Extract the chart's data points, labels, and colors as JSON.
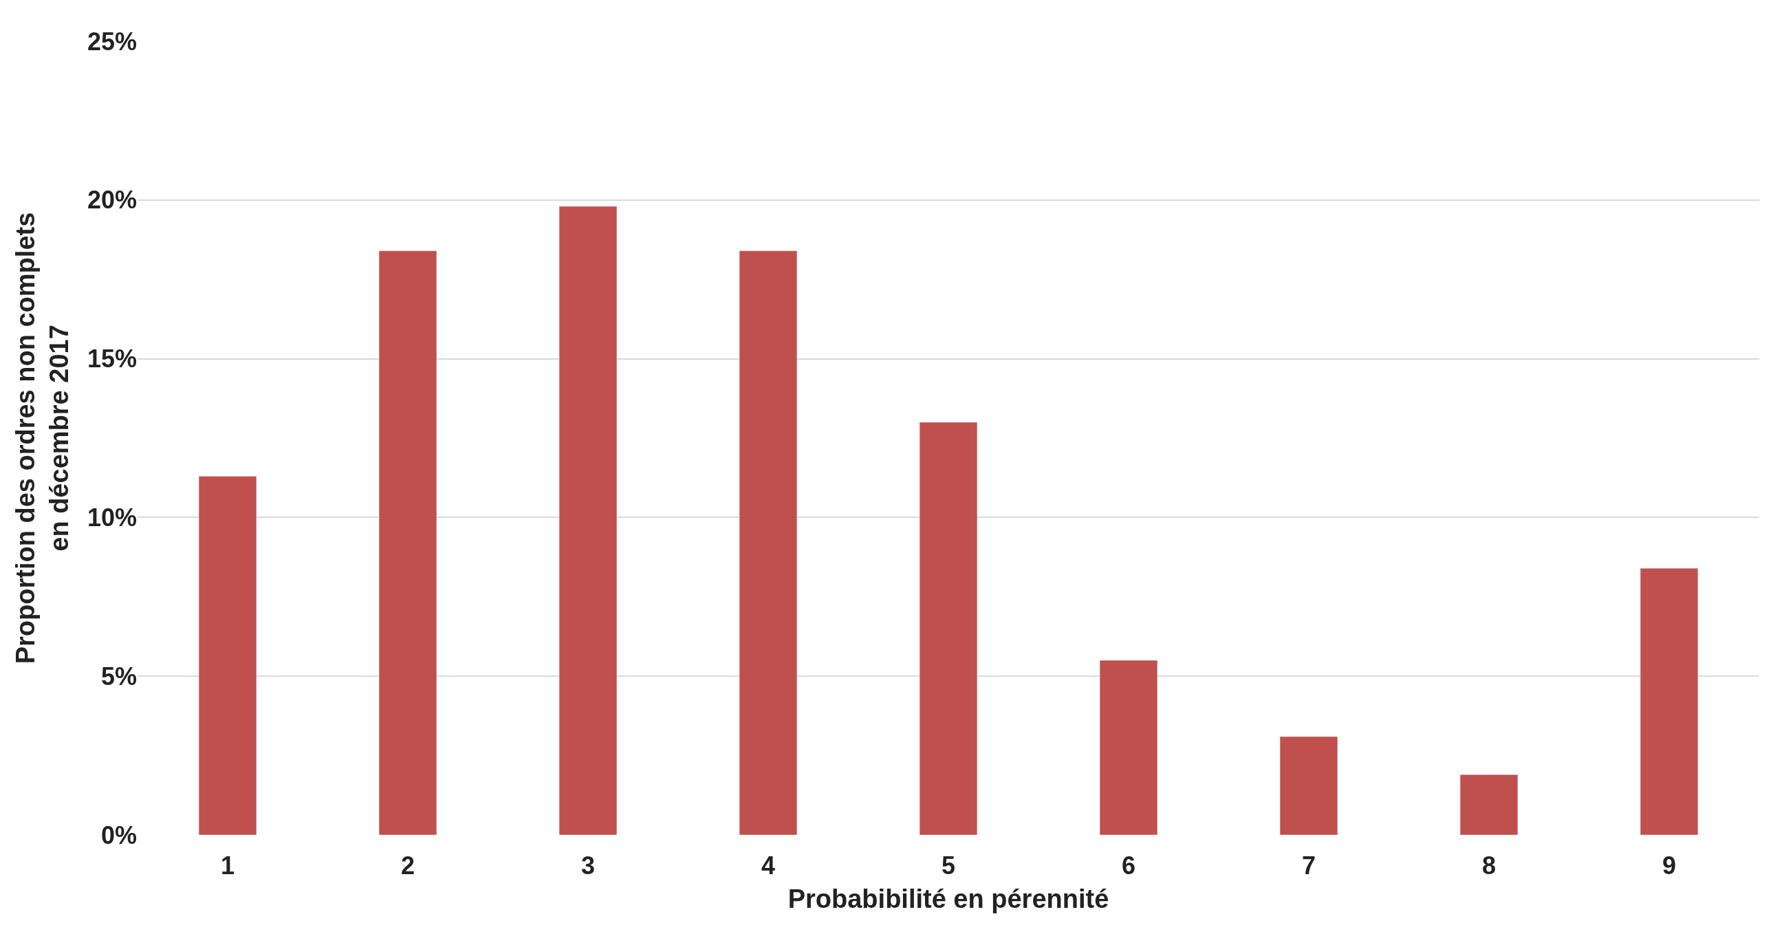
{
  "chart_data": {
    "type": "bar",
    "xlabel": "Probabibilité en pérennité",
    "ylabel": "Proportion des ordres non complets en décembre 2017",
    "categories": [
      "1",
      "2",
      "3",
      "4",
      "5",
      "6",
      "7",
      "8",
      "9"
    ],
    "series": [
      {
        "color": "#c0504d",
        "values": [
          11.3,
          18.4,
          19.8,
          18.4,
          13.0,
          5.5,
          3.1,
          1.9,
          8.4
        ]
      }
    ],
    "ylim": [
      0,
      25
    ],
    "yticks": [
      {
        "value": 0,
        "label": "0%"
      },
      {
        "value": 5,
        "label": "5%"
      },
      {
        "value": 10,
        "label": "10%"
      },
      {
        "value": 15,
        "label": "15%"
      },
      {
        "value": 20,
        "label": "20%"
      },
      {
        "value": 25,
        "label": "25%"
      }
    ],
    "grid": "y",
    "legend": false
  }
}
